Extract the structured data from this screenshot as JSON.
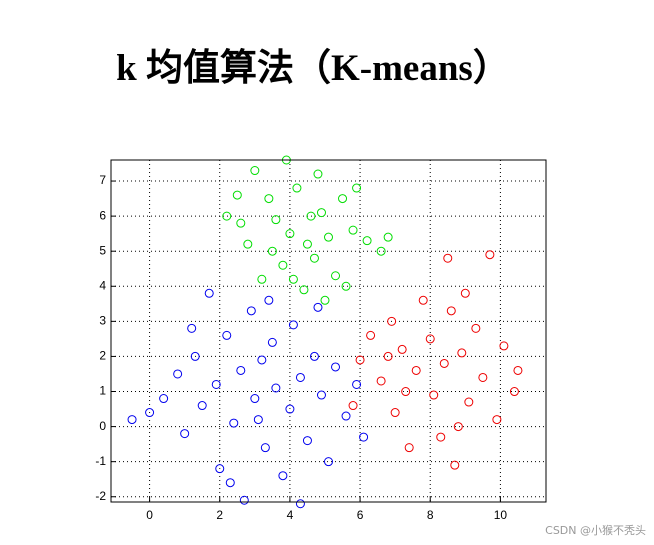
{
  "chart_data": {
    "type": "scatter",
    "title": "k 均值算法（K-means）",
    "watermark": "CSDN @小猴不秃头",
    "xlim": [
      -1.1,
      11.3
    ],
    "ylim": [
      -2.15,
      7.6
    ],
    "xticks": [
      0,
      2,
      4,
      6,
      8,
      10
    ],
    "yticks": [
      -2,
      -1,
      0,
      1,
      2,
      3,
      4,
      5,
      6,
      7
    ],
    "grid": true,
    "series": [
      {
        "color": "#00dd00",
        "x": [
          2.2,
          2.6,
          3.0,
          3.4,
          3.5,
          3.8,
          4.0,
          4.2,
          4.5,
          4.7,
          4.9,
          5.1,
          5.3,
          5.5,
          5.8,
          6.2,
          6.6,
          3.9,
          4.4,
          3.2,
          2.8,
          5.0,
          4.6,
          3.6,
          5.6,
          4.1,
          6.8,
          2.5,
          4.8,
          5.9
        ],
        "y": [
          6.0,
          5.8,
          7.3,
          6.5,
          5.0,
          4.6,
          5.5,
          6.8,
          5.2,
          4.8,
          6.1,
          5.4,
          4.3,
          6.5,
          5.6,
          5.3,
          5.0,
          7.6,
          3.9,
          4.2,
          5.2,
          3.6,
          6.0,
          5.9,
          4.0,
          4.2,
          5.4,
          6.6,
          7.2,
          6.8
        ]
      },
      {
        "color": "#0000ee",
        "x": [
          -0.5,
          0,
          0.4,
          0.8,
          1.0,
          1.3,
          1.5,
          1.7,
          1.9,
          2.0,
          2.2,
          2.4,
          2.6,
          2.7,
          2.9,
          3.0,
          3.2,
          3.3,
          3.5,
          3.6,
          3.8,
          4.0,
          4.1,
          4.3,
          4.5,
          4.7,
          4.9,
          5.1,
          5.3,
          5.6,
          5.9,
          6.1,
          3.4,
          4.3,
          2.3,
          1.2,
          4.8,
          3.1
        ],
        "y": [
          0.2,
          0.4,
          0.8,
          1.5,
          -0.2,
          2.0,
          0.6,
          3.8,
          1.2,
          -1.2,
          2.6,
          0.1,
          1.6,
          -2.1,
          3.3,
          0.8,
          1.9,
          -0.6,
          2.4,
          1.1,
          -1.4,
          0.5,
          2.9,
          1.4,
          -0.4,
          2.0,
          0.9,
          -1.0,
          1.7,
          0.3,
          1.2,
          -0.3,
          3.6,
          -2.2,
          -1.6,
          2.8,
          3.4,
          0.2
        ]
      },
      {
        "color": "#ee0000",
        "x": [
          5.8,
          6.0,
          6.3,
          6.6,
          6.9,
          7.0,
          7.2,
          7.4,
          7.6,
          7.8,
          8.0,
          8.1,
          8.3,
          8.4,
          8.6,
          8.7,
          8.9,
          9.1,
          9.3,
          9.5,
          9.7,
          9.9,
          10.1,
          10.4,
          8.5,
          7.3,
          9.0,
          10.5,
          6.8,
          8.8
        ],
        "y": [
          0.6,
          1.9,
          2.6,
          1.3,
          3.0,
          0.4,
          2.2,
          -0.6,
          1.6,
          3.6,
          2.5,
          0.9,
          -0.3,
          1.8,
          3.3,
          -1.1,
          2.1,
          0.7,
          2.8,
          1.4,
          4.9,
          0.2,
          2.3,
          1.0,
          4.8,
          1.0,
          3.8,
          1.6,
          2.0,
          0.0
        ]
      }
    ]
  }
}
